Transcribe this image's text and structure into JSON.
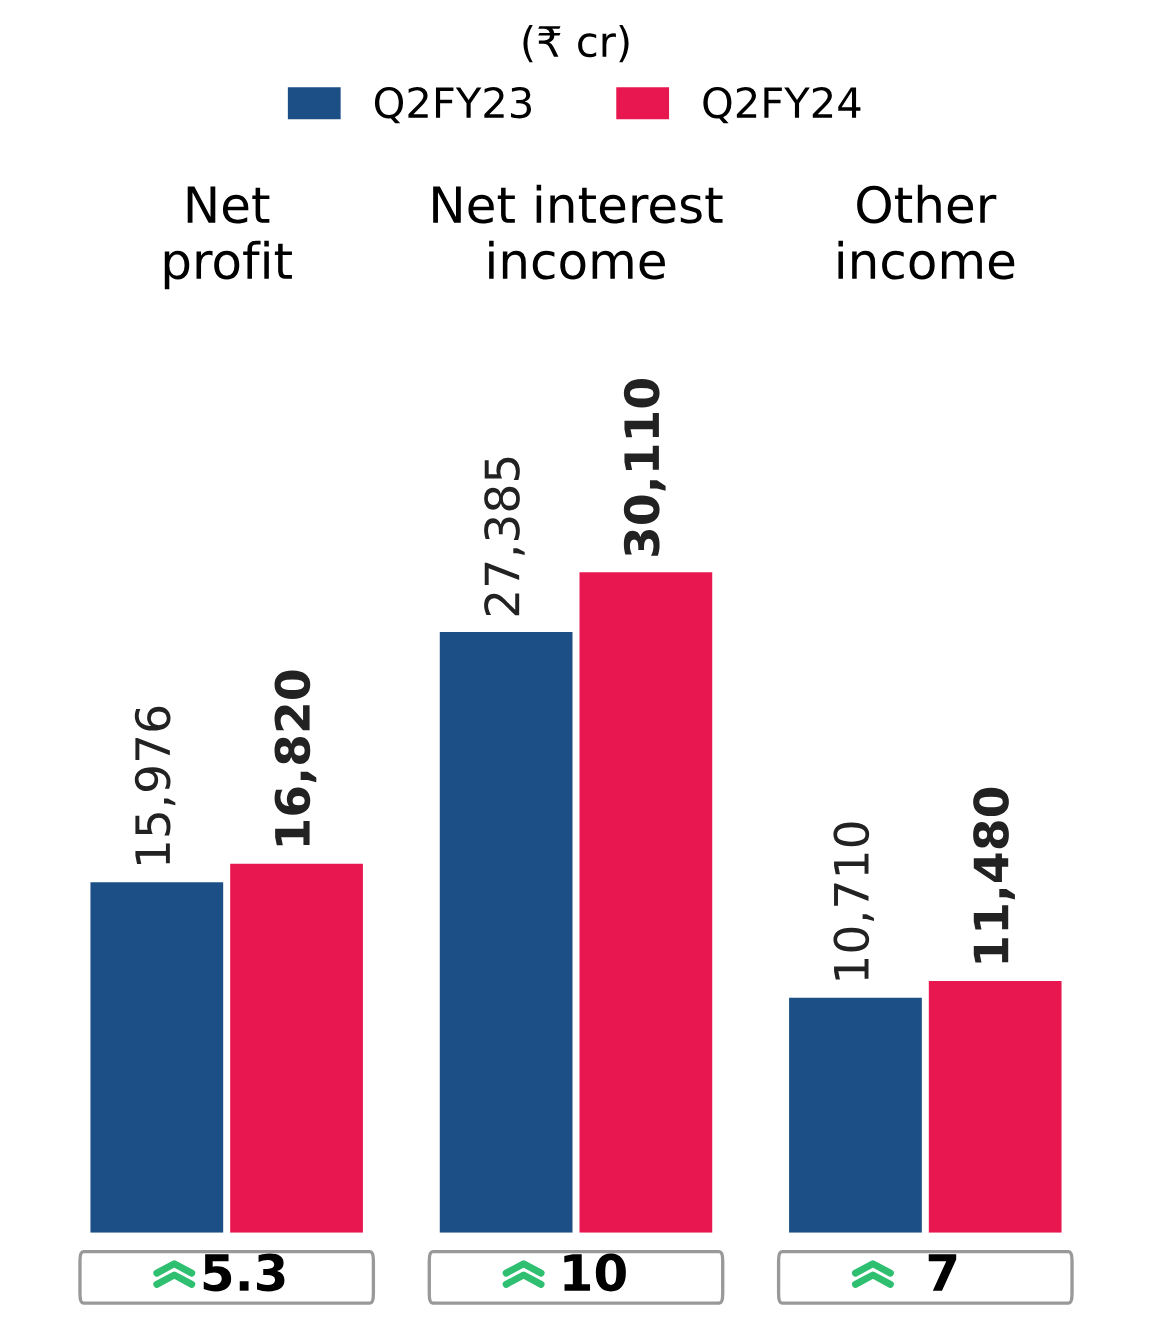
{
  "chart_data": {
    "type": "bar",
    "legend_title": "(₹ cr)",
    "legend": "top",
    "categories": [
      "Net\nprofit",
      "Net interest\nincome",
      "Other\nincome"
    ],
    "series": [
      {
        "name": "Q2FY23",
        "color": "#1b4f85",
        "values": [
          15976,
          27385,
          10710
        ],
        "value_labels": [
          "15,976",
          "27,385",
          "10,710"
        ]
      },
      {
        "name": "Q2FY24",
        "color": "#e8174f",
        "values": [
          16820,
          30110,
          11480
        ],
        "value_labels": [
          "16,820",
          "30,110",
          "11,480"
        ]
      }
    ],
    "grid": false,
    "annotations": [
      "5.3",
      "10",
      "7"
    ]
  }
}
